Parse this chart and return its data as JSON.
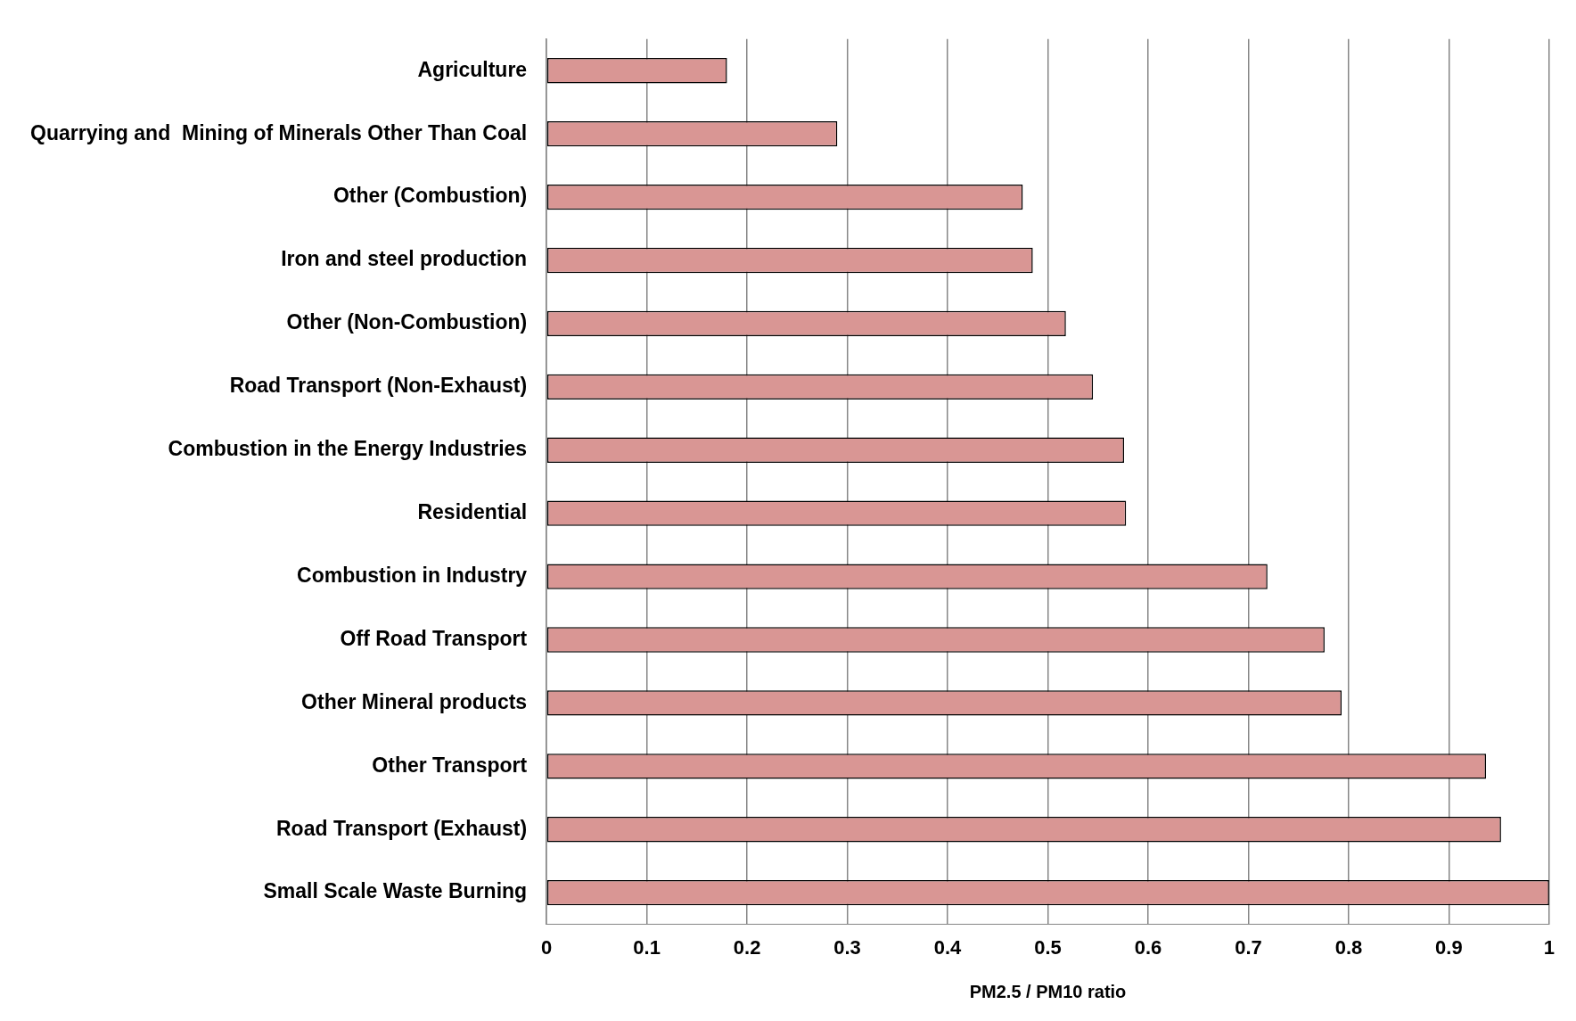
{
  "chart_data": {
    "type": "bar",
    "orientation": "horizontal",
    "xlabel": "PM2.5 / PM10 ratio",
    "categories": [
      "Agriculture",
      "Quarrying and  Mining of Minerals Other Than Coal",
      "Other (Combustion)",
      "Iron and steel production",
      "Other (Non-Combustion)",
      "Road Transport (Non-Exhaust)",
      "Combustion in the Energy Industries",
      "Residential",
      "Combustion in Industry",
      "Off Road Transport",
      "Other Mineral products",
      "Other Transport",
      "Road Transport (Exhaust)",
      "Small Scale Waste Burning"
    ],
    "values": [
      0.18,
      0.29,
      0.475,
      0.485,
      0.518,
      0.545,
      0.576,
      0.578,
      0.719,
      0.776,
      0.793,
      0.937,
      0.952,
      1.0
    ],
    "color": "#d99694",
    "xlim": [
      0,
      1
    ],
    "xticks": [
      0,
      0.1,
      0.2,
      0.3,
      0.4,
      0.5,
      0.6,
      0.7,
      0.8,
      0.9,
      1
    ],
    "grid": "x",
    "legend": false
  }
}
